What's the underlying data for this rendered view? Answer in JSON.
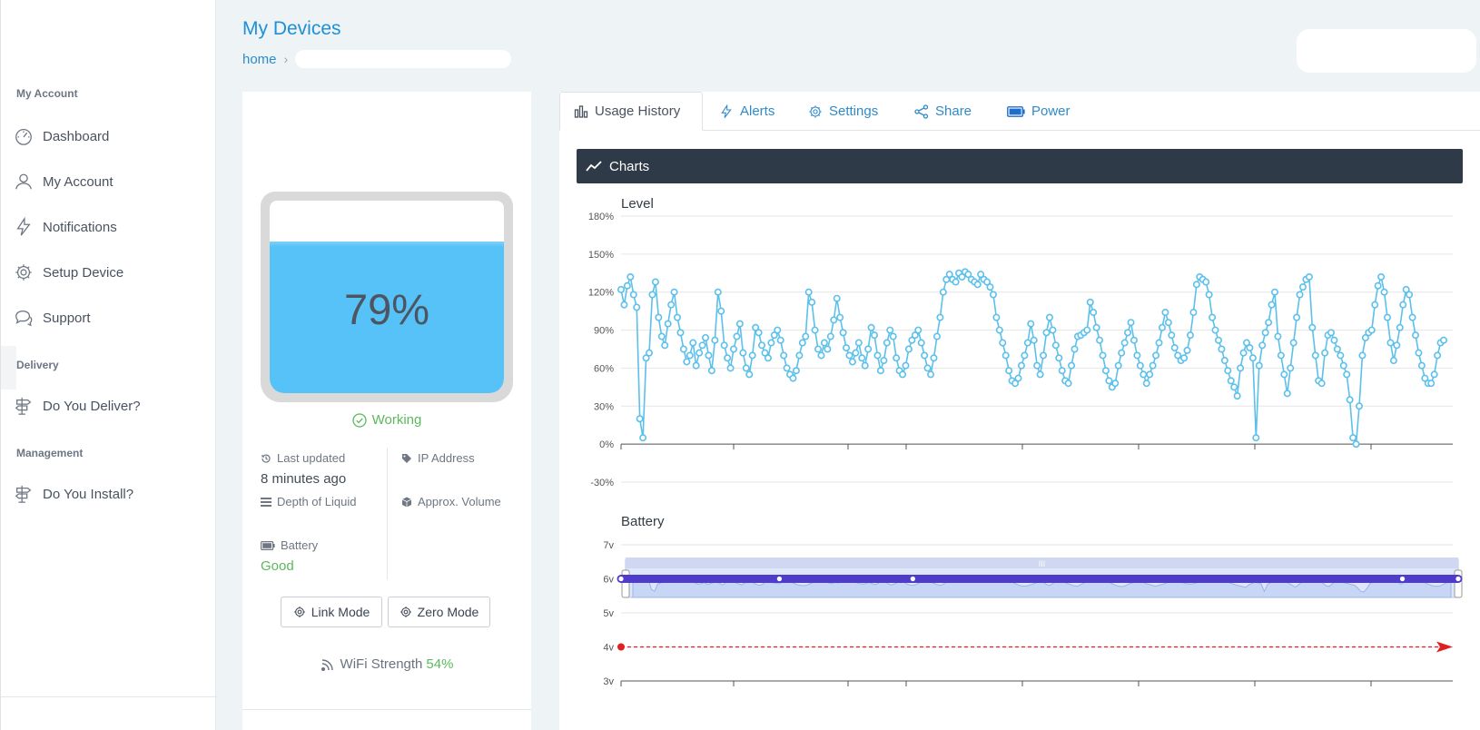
{
  "sidebar": {
    "sections": [
      {
        "label": "My Account"
      },
      {
        "label": "Delivery"
      },
      {
        "label": "Management"
      }
    ],
    "items": [
      {
        "label": "Dashboard",
        "icon": "dashboard-gauge-icon"
      },
      {
        "label": "My Account",
        "icon": "user-icon"
      },
      {
        "label": "Notifications",
        "icon": "lightning-icon"
      },
      {
        "label": "Setup Device",
        "icon": "gear-icon"
      },
      {
        "label": "Support",
        "icon": "chat-bubbles-icon"
      },
      {
        "label": "Do You Deliver?",
        "icon": "signpost-icon"
      },
      {
        "label": "Do You Install?",
        "icon": "signpost-icon"
      }
    ]
  },
  "header": {
    "title": "My Devices",
    "breadcrumb_home": "home"
  },
  "device": {
    "level_label": "79%",
    "level_fraction": 0.79,
    "status": "Working",
    "last_updated_label": "Last updated",
    "last_updated_value": "8 minutes ago",
    "ip_label": "IP Address",
    "depth_label": "Depth of Liquid",
    "volume_label": "Approx. Volume",
    "battery_label": "Battery",
    "battery_value": "Good",
    "link_mode_label": "Link Mode",
    "zero_mode_label": "Zero Mode",
    "wifi_label": "WiFi Strength",
    "wifi_value": "54%",
    "colors": {
      "fill": "#56c2f7",
      "status_ok": "#5cb85c"
    }
  },
  "tabs": [
    {
      "label": "Usage History",
      "icon": "bar-chart-icon",
      "active": true
    },
    {
      "label": "Alerts",
      "icon": "lightning-icon"
    },
    {
      "label": "Settings",
      "icon": "gear-icon"
    },
    {
      "label": "Share",
      "icon": "share-icon"
    },
    {
      "label": "Power",
      "icon": "battery-icon"
    }
  ],
  "charts_header": "Charts",
  "chart_data": [
    {
      "type": "line",
      "title": "Level",
      "y_ticks": [
        "180%",
        "150%",
        "120%",
        "90%",
        "60%",
        "30%",
        "0%",
        "-30%"
      ],
      "ylim": [
        -30,
        180
      ],
      "color": "#5bc0eb",
      "navigator": true,
      "values": [
        122,
        110,
        125,
        132,
        118,
        108,
        20,
        5,
        68,
        72,
        118,
        128,
        100,
        85,
        78,
        95,
        110,
        120,
        100,
        88,
        75,
        65,
        70,
        80,
        62,
        72,
        78,
        84,
        70,
        58,
        82,
        120,
        105,
        78,
        68,
        60,
        75,
        85,
        95,
        72,
        60,
        55,
        70,
        92,
        88,
        78,
        72,
        68,
        80,
        86,
        90,
        82,
        70,
        60,
        55,
        52,
        58,
        70,
        80,
        85,
        120,
        112,
        90,
        75,
        70,
        80,
        75,
        85,
        98,
        115,
        100,
        88,
        76,
        70,
        65,
        72,
        80,
        68,
        62,
        75,
        92,
        86,
        70,
        58,
        66,
        80,
        90,
        85,
        68,
        58,
        55,
        62,
        75,
        82,
        86,
        90,
        80,
        70,
        60,
        55,
        68,
        85,
        100,
        120,
        130,
        134,
        130,
        128,
        135,
        132,
        136,
        134,
        130,
        128,
        126,
        134,
        130,
        128,
        124,
        118,
        100,
        90,
        80,
        70,
        58,
        50,
        48,
        52,
        62,
        70,
        80,
        95,
        82,
        62,
        55,
        70,
        88,
        100,
        90,
        78,
        68,
        58,
        50,
        48,
        62,
        75,
        85,
        86,
        88,
        90,
        112,
        104,
        92,
        82,
        70,
        58,
        50,
        45,
        48,
        62,
        72,
        80,
        88,
        96,
        82,
        70,
        62,
        55,
        48,
        55,
        62,
        70,
        80,
        92,
        104,
        96,
        86,
        76,
        70,
        66,
        68,
        74,
        86,
        104,
        126,
        132,
        130,
        128,
        118,
        100,
        90,
        82,
        75,
        66,
        58,
        50,
        45,
        38,
        60,
        72,
        80,
        76,
        68,
        5,
        62,
        78,
        88,
        96,
        110,
        120,
        85,
        70,
        55,
        40,
        60,
        80,
        100,
        118,
        124,
        130,
        132,
        92,
        70,
        50,
        48,
        72,
        86,
        88,
        82,
        75,
        70,
        62,
        55,
        35,
        5,
        0,
        30,
        70,
        84,
        88,
        90,
        110,
        125,
        132,
        120,
        100,
        80,
        66,
        78,
        92,
        110,
        122,
        118,
        100,
        86,
        72,
        62,
        52,
        48,
        48,
        55,
        70,
        80,
        82
      ]
    },
    {
      "type": "line",
      "title": "Battery",
      "y_ticks": [
        "7v",
        "6v",
        "5v",
        "4v",
        "3v"
      ],
      "ylim": [
        3,
        7
      ],
      "series": [
        {
          "color": "#4f3cc9",
          "values": [
            6,
            6,
            6,
            6,
            6,
            6,
            6,
            6,
            6,
            6,
            6,
            6,
            6,
            6,
            6,
            6
          ]
        },
        {
          "color": "#e02020",
          "dashed": true,
          "values": [
            4,
            4
          ]
        }
      ]
    }
  ]
}
